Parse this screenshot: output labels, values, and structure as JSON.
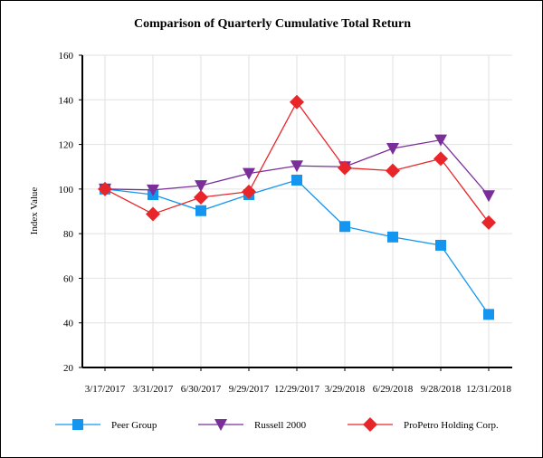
{
  "chart_data": {
    "type": "line",
    "title": "Comparison of Quarterly Cumulative Total Return",
    "xlabel": "",
    "ylabel": "Index Value",
    "ylim": [
      20,
      160
    ],
    "yticks": [
      20,
      40,
      60,
      80,
      100,
      120,
      140,
      160
    ],
    "grid": true,
    "legend": "bottom",
    "categories": [
      "3/17/2017",
      "3/31/2017",
      "6/30/2017",
      "9/29/2017",
      "12/29/2017",
      "3/29/2018",
      "6/29/2018",
      "9/28/2018",
      "12/31/2018"
    ],
    "series": [
      {
        "name": "Peer Group",
        "color": "#1496f0",
        "marker": "square",
        "values": [
          100,
          97.5,
          90.3,
          97.5,
          104,
          83.2,
          78.5,
          74.8,
          43.8
        ]
      },
      {
        "name": "Russell 2000",
        "color": "#7a2e9a",
        "marker": "triangle-down",
        "values": [
          100,
          99.6,
          101.5,
          107,
          110.4,
          110,
          118.2,
          122,
          97
        ]
      },
      {
        "name": "ProPetro Holding Corp.",
        "color": "#e8262a",
        "marker": "diamond",
        "values": [
          100,
          88.8,
          96.3,
          98.8,
          139,
          109.5,
          108.2,
          113.6,
          85
        ]
      }
    ]
  }
}
